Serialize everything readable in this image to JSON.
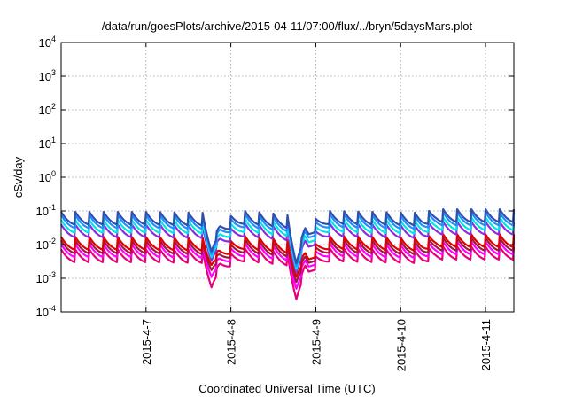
{
  "chart_data": {
    "type": "line",
    "title": "/data/run/goesPlots/archive/2015-04-11/07:00/flux/../bryn/5daysMars.plot",
    "xlabel": "Coordinated Universal Time (UTC)",
    "ylabel": "cSv/day",
    "yscale": "log",
    "ylim": [
      0.0001,
      10000
    ],
    "y_ticks": [
      {
        "base": "10",
        "exp": "-4",
        "value": 0.0001
      },
      {
        "base": "10",
        "exp": "-3",
        "value": 0.001
      },
      {
        "base": "10",
        "exp": "-2",
        "value": 0.01
      },
      {
        "base": "10",
        "exp": "-1",
        "value": 0.1
      },
      {
        "base": "10",
        "exp": "0",
        "value": 1
      },
      {
        "base": "10",
        "exp": "1",
        "value": 10
      },
      {
        "base": "10",
        "exp": "2",
        "value": 100
      },
      {
        "base": "10",
        "exp": "3",
        "value": 1000
      },
      {
        "base": "10",
        "exp": "4",
        "value": 10000
      }
    ],
    "xlim": [
      "2015-04-06 00:00",
      "2015-04-11 08:00"
    ],
    "x_ticks": [
      "2015-4-7",
      "2015-4-8",
      "2015-4-9",
      "2015-4-10",
      "2015-4-11"
    ],
    "grid": true,
    "series_colors": [
      "#e8007a",
      "#ff00ff",
      "#a01840",
      "#e00000",
      "#8a2be2",
      "#00e5e5",
      "#1e90ff",
      "#3050b0"
    ],
    "pattern": {
      "period_hours": 4,
      "series_scale": [
        0.06,
        0.085,
        0.11,
        0.14,
        0.33,
        0.45,
        0.62,
        0.78
      ],
      "peak_envelope": [
        {
          "x": "2015-04-06 00:00",
          "y": 0.075
        },
        {
          "x": "2015-04-07 00:00",
          "y": 0.075
        },
        {
          "x": "2015-04-07 18:00",
          "y": 0.07
        },
        {
          "x": "2015-04-07 21:00",
          "y": 0.04
        },
        {
          "x": "2015-04-08 04:00",
          "y": 0.08
        },
        {
          "x": "2015-04-08 16:00",
          "y": 0.06
        },
        {
          "x": "2015-04-08 22:00",
          "y": 0.03
        },
        {
          "x": "2015-04-09 04:00",
          "y": 0.08
        },
        {
          "x": "2015-04-10 06:00",
          "y": 0.07
        },
        {
          "x": "2015-04-10 10:00",
          "y": 0.09
        },
        {
          "x": "2015-04-11 08:00",
          "y": 0.09
        }
      ],
      "dips": [
        {
          "x": "2015-04-07 18:30",
          "min_y": 0.0009
        },
        {
          "x": "2015-04-08 18:30",
          "min_y": 0.0004
        }
      ]
    }
  }
}
